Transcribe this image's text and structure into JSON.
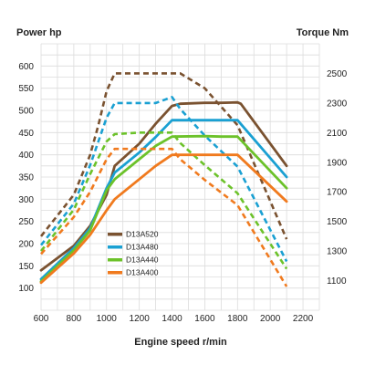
{
  "chart_data": {
    "type": "line",
    "title": "",
    "xlabel": "Engine speed r/min",
    "ylabel_left": "Power hp",
    "ylabel_right": "Torque Nm",
    "xlim": [
      600,
      2300
    ],
    "ylim_left": [
      50,
      650
    ],
    "ylim_right": [
      900,
      2700
    ],
    "x_ticks": [
      600,
      800,
      1000,
      1200,
      1400,
      1600,
      1800,
      2000,
      2200
    ],
    "y_ticks_left": [
      100,
      150,
      200,
      250,
      300,
      350,
      400,
      450,
      500,
      550,
      600
    ],
    "y_ticks_right": [
      1100,
      1300,
      1500,
      1700,
      1900,
      2100,
      2300,
      2500
    ],
    "grid": true,
    "legend_position": "lower-center",
    "series": [
      {
        "name": "D13A520",
        "color": "#7a5230",
        "power_x": [
          600,
          800,
          900,
          1000,
          1050,
          1200,
          1300,
          1400,
          1450,
          1600,
          1700,
          1800,
          1820,
          2100
        ],
        "power_y": [
          140,
          195,
          240,
          310,
          375,
          425,
          470,
          510,
          515,
          517,
          517,
          518,
          515,
          375
        ],
        "torque_x": [
          600,
          800,
          900,
          950,
          1000,
          1050,
          1200,
          1300,
          1400,
          1450,
          1600,
          1800,
          2100
        ],
        "torque_y": [
          1400,
          1680,
          1950,
          2150,
          2380,
          2500,
          2500,
          2500,
          2500,
          2500,
          2400,
          2150,
          1380
        ]
      },
      {
        "name": "D13A480",
        "color": "#1aa0d2",
        "power_x": [
          600,
          800,
          900,
          1000,
          1050,
          1200,
          1300,
          1400,
          1600,
          1700,
          1800,
          2100
        ],
        "power_y": [
          120,
          190,
          235,
          325,
          360,
          405,
          440,
          478,
          478,
          478,
          478,
          350
        ],
        "torque_x": [
          600,
          800,
          900,
          1000,
          1050,
          1200,
          1300,
          1400,
          1450,
          1600,
          1800,
          2100
        ],
        "torque_y": [
          1340,
          1620,
          1880,
          2200,
          2300,
          2300,
          2300,
          2340,
          2260,
          2080,
          1870,
          1230
        ]
      },
      {
        "name": "D13A440",
        "color": "#6cc22a",
        "power_x": [
          600,
          800,
          900,
          1000,
          1050,
          1200,
          1300,
          1400,
          1600,
          1700,
          1800,
          2100
        ],
        "power_y": [
          115,
          185,
          230,
          320,
          345,
          390,
          420,
          441,
          442,
          441,
          441,
          325
        ],
        "torque_x": [
          600,
          800,
          900,
          1000,
          1050,
          1200,
          1300,
          1400,
          1450,
          1600,
          1800,
          2100
        ],
        "torque_y": [
          1300,
          1580,
          1820,
          2040,
          2090,
          2100,
          2100,
          2100,
          2030,
          1880,
          1690,
          1180
        ]
      },
      {
        "name": "D13A400",
        "color": "#f07a1e",
        "power_x": [
          600,
          800,
          900,
          1000,
          1050,
          1200,
          1300,
          1400,
          1600,
          1700,
          1800,
          2100
        ],
        "power_y": [
          112,
          178,
          220,
          275,
          300,
          345,
          375,
          400,
          400,
          400,
          400,
          295
        ],
        "torque_x": [
          600,
          800,
          900,
          1000,
          1050,
          1200,
          1300,
          1400,
          1450,
          1600,
          1800,
          2100
        ],
        "torque_y": [
          1280,
          1530,
          1700,
          1920,
          1990,
          1990,
          1990,
          1990,
          1920,
          1780,
          1610,
          1060
        ]
      }
    ]
  }
}
